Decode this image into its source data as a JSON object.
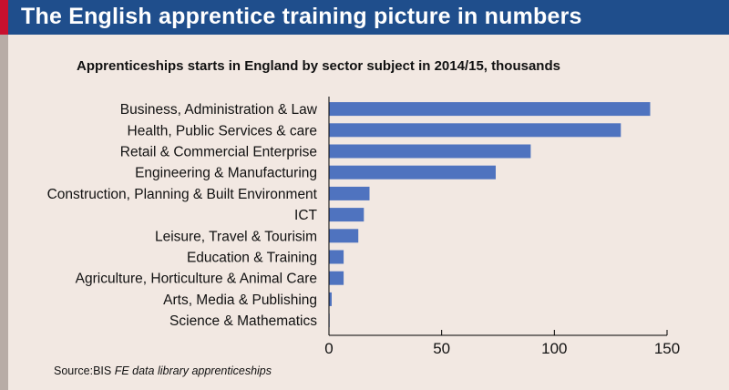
{
  "header": {
    "title": "The English apprentice training picture in numbers"
  },
  "colors": {
    "header_bg": "#1f4e8c",
    "bar": "#4f73bf",
    "accent": "#c8102e"
  },
  "chart_data": {
    "type": "bar",
    "orientation": "horizontal",
    "title": "Apprenticeships starts in England by sector subject in 2014/15, thousands",
    "categories": [
      "Business, Administration & Law",
      "Health, Public Services & care",
      "Retail & Commercial Enterprise",
      "Engineering & Manufacturing",
      "Construction, Planning & Built Environment",
      "ICT",
      "Leisure, Travel & Tourisim",
      "Education & Training",
      "Agriculture, Horticulture & Animal Care",
      "Arts, Media & Publishing",
      "Science & Mathematics"
    ],
    "values": [
      142.5,
      129.5,
      89.5,
      74,
      18,
      15.5,
      13,
      6.5,
      6.5,
      1.2,
      0.3
    ],
    "xlim": [
      0,
      150
    ],
    "xticks": [
      "0",
      "50",
      "100",
      "150"
    ],
    "xlabel": "",
    "ylabel": "",
    "grid": false,
    "legend": "none"
  },
  "source": {
    "prefix": "Source:BIS ",
    "italic": "FE data library apprenticeships"
  }
}
